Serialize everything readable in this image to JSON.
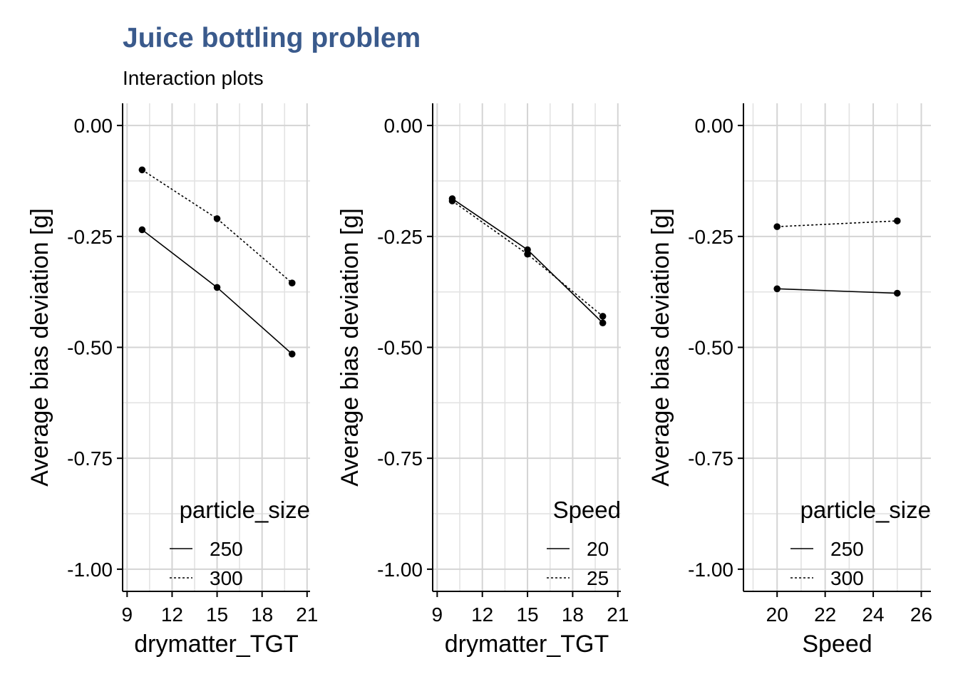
{
  "title": "Juice bottling problem",
  "subtitle": "Interaction plots",
  "chart_data": [
    {
      "type": "line",
      "xlabel": "drymatter_TGT",
      "ylabel": "Average bias deviation [g]",
      "xlim": [
        8.7,
        21.2
      ],
      "ylim": [
        -1.05,
        0.05
      ],
      "xticks": [
        9,
        12,
        15,
        18,
        21
      ],
      "xtick_labels": [
        "9",
        "12",
        "15",
        "18",
        "21"
      ],
      "yticks": [
        0,
        -0.25,
        -0.5,
        -0.75,
        -1
      ],
      "ytick_labels": [
        "0.00",
        "-0.25",
        "-0.50",
        "-0.75",
        "-1.00"
      ],
      "x_minor": [
        10.5,
        13.5,
        16.5,
        19.5
      ],
      "y_minor": [
        -0.125,
        -0.375,
        -0.625,
        -0.875
      ],
      "grid": true,
      "legend": {
        "title": "particle_size",
        "position": "bottom-right"
      },
      "series": [
        {
          "name": "250",
          "linetype": "solid",
          "x": [
            10,
            15,
            20
          ],
          "y": [
            -0.235,
            -0.365,
            -0.515
          ]
        },
        {
          "name": "300",
          "linetype": "dotted",
          "x": [
            10,
            15,
            20
          ],
          "y": [
            -0.1,
            -0.21,
            -0.355
          ]
        }
      ]
    },
    {
      "type": "line",
      "xlabel": "drymatter_TGT",
      "ylabel": "Average bias deviation [g]",
      "xlim": [
        8.7,
        21.2
      ],
      "ylim": [
        -1.05,
        0.05
      ],
      "xticks": [
        9,
        12,
        15,
        18,
        21
      ],
      "xtick_labels": [
        "9",
        "12",
        "15",
        "18",
        "21"
      ],
      "yticks": [
        0,
        -0.25,
        -0.5,
        -0.75,
        -1
      ],
      "ytick_labels": [
        "0.00",
        "-0.25",
        "-0.50",
        "-0.75",
        "-1.00"
      ],
      "x_minor": [
        10.5,
        13.5,
        16.5,
        19.5
      ],
      "y_minor": [
        -0.125,
        -0.375,
        -0.625,
        -0.875
      ],
      "grid": true,
      "legend": {
        "title": "Speed",
        "position": "bottom-right"
      },
      "series": [
        {
          "name": "20",
          "linetype": "solid",
          "x": [
            10,
            15,
            20
          ],
          "y": [
            -0.165,
            -0.28,
            -0.445
          ]
        },
        {
          "name": "25",
          "linetype": "dotted",
          "x": [
            10,
            15,
            20
          ],
          "y": [
            -0.17,
            -0.29,
            -0.43
          ]
        }
      ]
    },
    {
      "type": "line",
      "xlabel": "Speed",
      "ylabel": "Average bias deviation [g]",
      "xlim": [
        18.6,
        26.4
      ],
      "ylim": [
        -1.05,
        0.05
      ],
      "xticks": [
        20,
        22,
        24,
        26
      ],
      "xtick_labels": [
        "20",
        "22",
        "24",
        "26"
      ],
      "yticks": [
        0,
        -0.25,
        -0.5,
        -0.75,
        -1
      ],
      "ytick_labels": [
        "0.00",
        "-0.25",
        "-0.50",
        "-0.75",
        "-1.00"
      ],
      "x_minor": [
        19,
        21,
        23,
        25
      ],
      "y_minor": [
        -0.125,
        -0.375,
        -0.625,
        -0.875
      ],
      "grid": true,
      "legend": {
        "title": "particle_size",
        "position": "bottom-right"
      },
      "series": [
        {
          "name": "250",
          "linetype": "solid",
          "x": [
            20,
            25
          ],
          "y": [
            -0.368,
            -0.378
          ]
        },
        {
          "name": "300",
          "linetype": "dotted",
          "x": [
            20,
            25
          ],
          "y": [
            -0.228,
            -0.215
          ]
        }
      ]
    }
  ]
}
